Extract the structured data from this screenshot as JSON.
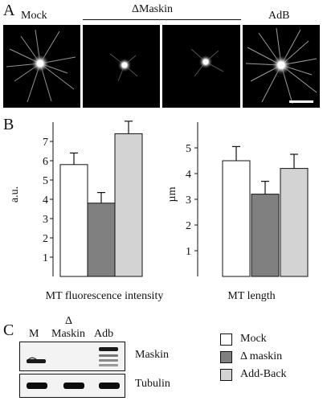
{
  "panels": {
    "a": "A",
    "b": "B",
    "c": "C"
  },
  "panel_a": {
    "labels": [
      "Mock",
      "ΔMaskin",
      "AdB"
    ]
  },
  "chart_data": [
    {
      "type": "bar",
      "categories": [
        "Mock",
        "Δ maskin",
        "Add-Back"
      ],
      "values": [
        5.8,
        3.8,
        7.4
      ],
      "errors": [
        0.6,
        0.55,
        0.65
      ],
      "colors": [
        "#ffffff",
        "#808080",
        "#d3d3d3"
      ],
      "xlabel": "MT fluorescence intensity",
      "ylabel": "a.u.",
      "yticks": [
        1,
        2,
        3,
        4,
        5,
        6,
        7
      ],
      "ylim": [
        0,
        8
      ]
    },
    {
      "type": "bar",
      "categories": [
        "Mock",
        "Δ maskin",
        "Add-Back"
      ],
      "values": [
        4.5,
        3.2,
        4.2
      ],
      "errors": [
        0.55,
        0.5,
        0.55
      ],
      "colors": [
        "#ffffff",
        "#808080",
        "#d3d3d3"
      ],
      "xlabel": "MT length",
      "ylabel": "µm",
      "yticks": [
        1,
        2,
        3,
        4,
        5
      ],
      "ylim": [
        0,
        6
      ]
    }
  ],
  "panel_c": {
    "lanes": [
      "M",
      "Δ\nMaskin",
      "Adb"
    ],
    "lane_delta": "Δ",
    "lane_maskin": "Maskin",
    "blots": [
      "Maskin",
      "Tubulin"
    ]
  },
  "legend": {
    "items": [
      {
        "label": "Mock",
        "color": "#ffffff"
      },
      {
        "label": "Δ maskin",
        "color": "#808080"
      },
      {
        "label": "Add-Back",
        "color": "#d3d3d3"
      }
    ]
  }
}
